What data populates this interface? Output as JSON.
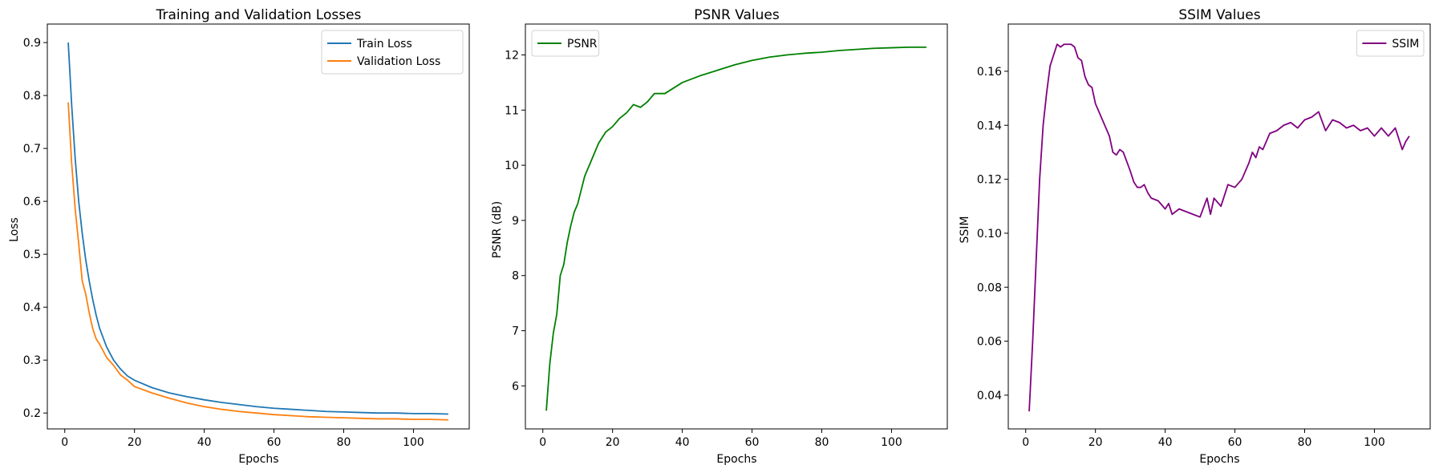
{
  "chart_data": [
    {
      "type": "line",
      "title": "Training and Validation Losses",
      "xlabel": "Epochs",
      "ylabel": "Loss",
      "xlim": [
        -5,
        116
      ],
      "ylim": [
        0.17,
        0.935
      ],
      "xticks": [
        0,
        20,
        40,
        60,
        80,
        100
      ],
      "yticks": [
        0.2,
        0.3,
        0.4,
        0.5,
        0.6,
        0.7,
        0.8,
        0.9
      ],
      "grid": false,
      "legend": "top-right",
      "x": [
        1,
        2,
        3,
        4,
        5,
        6,
        7,
        8,
        9,
        10,
        12,
        14,
        16,
        18,
        20,
        25,
        30,
        35,
        40,
        45,
        50,
        55,
        60,
        65,
        70,
        75,
        80,
        85,
        90,
        95,
        100,
        105,
        110
      ],
      "series": [
        {
          "name": "Train Loss",
          "color": "#1f77b4",
          "values": [
            0.9,
            0.78,
            0.68,
            0.6,
            0.54,
            0.49,
            0.45,
            0.415,
            0.385,
            0.36,
            0.325,
            0.3,
            0.283,
            0.27,
            0.262,
            0.248,
            0.238,
            0.231,
            0.225,
            0.22,
            0.216,
            0.212,
            0.209,
            0.207,
            0.205,
            0.203,
            0.202,
            0.201,
            0.2,
            0.2,
            0.199,
            0.199,
            0.198
          ]
        },
        {
          "name": "Validation Loss",
          "color": "#ff7f0e",
          "values": [
            0.787,
            0.67,
            0.585,
            0.52,
            0.45,
            0.425,
            0.39,
            0.36,
            0.34,
            0.33,
            0.305,
            0.29,
            0.272,
            0.262,
            0.25,
            0.238,
            0.228,
            0.219,
            0.212,
            0.207,
            0.203,
            0.2,
            0.197,
            0.195,
            0.193,
            0.192,
            0.191,
            0.19,
            0.189,
            0.189,
            0.188,
            0.188,
            0.187
          ]
        }
      ]
    },
    {
      "type": "line",
      "title": "PSNR Values",
      "xlabel": "Epochs",
      "ylabel": "PSNR (dB)",
      "xlim": [
        -5,
        116
      ],
      "ylim": [
        5.22,
        12.56
      ],
      "xticks": [
        0,
        20,
        40,
        60,
        80,
        100
      ],
      "yticks": [
        6,
        7,
        8,
        9,
        10,
        11,
        12
      ],
      "grid": false,
      "legend": "top-left",
      "x": [
        1,
        2,
        3,
        4,
        5,
        6,
        7,
        8,
        9,
        10,
        12,
        14,
        16,
        18,
        20,
        22,
        24,
        26,
        28,
        30,
        32,
        35,
        40,
        45,
        50,
        55,
        60,
        65,
        70,
        75,
        80,
        85,
        90,
        95,
        100,
        105,
        110
      ],
      "series": [
        {
          "name": "PSNR",
          "color": "#008000",
          "values": [
            5.55,
            6.4,
            6.95,
            7.3,
            8.0,
            8.2,
            8.6,
            8.9,
            9.15,
            9.3,
            9.8,
            10.1,
            10.4,
            10.6,
            10.7,
            10.85,
            10.95,
            11.1,
            11.05,
            11.15,
            11.3,
            11.3,
            11.5,
            11.62,
            11.72,
            11.82,
            11.9,
            11.96,
            12.0,
            12.03,
            12.05,
            12.08,
            12.1,
            12.12,
            12.13,
            12.14,
            12.14
          ]
        }
      ]
    },
    {
      "type": "line",
      "title": "SSIM Values",
      "xlabel": "Epochs",
      "ylabel": "SSIM",
      "xlim": [
        -5,
        116
      ],
      "ylim": [
        0.0275,
        0.1775
      ],
      "xticks": [
        0,
        20,
        40,
        60,
        80,
        100
      ],
      "yticks": [
        0.04,
        0.06,
        0.08,
        0.1,
        0.12,
        0.14,
        0.16
      ],
      "grid": false,
      "legend": "top-right",
      "x": [
        1,
        2,
        3,
        4,
        5,
        6,
        7,
        8,
        9,
        10,
        11,
        12,
        13,
        14,
        15,
        16,
        17,
        18,
        19,
        20,
        22,
        24,
        25,
        26,
        27,
        28,
        30,
        31,
        32,
        33,
        34,
        35,
        36,
        38,
        40,
        41,
        42,
        44,
        46,
        48,
        50,
        52,
        53,
        54,
        56,
        58,
        60,
        62,
        64,
        65,
        66,
        67,
        68,
        70,
        72,
        74,
        76,
        78,
        80,
        82,
        84,
        86,
        88,
        90,
        92,
        94,
        96,
        98,
        100,
        102,
        104,
        106,
        108,
        109,
        110
      ],
      "series": [
        {
          "name": "SSIM",
          "color": "#800080",
          "values": [
            0.034,
            0.06,
            0.09,
            0.12,
            0.14,
            0.152,
            0.162,
            0.166,
            0.17,
            0.169,
            0.17,
            0.17,
            0.17,
            0.169,
            0.165,
            0.164,
            0.158,
            0.155,
            0.154,
            0.148,
            0.142,
            0.136,
            0.13,
            0.129,
            0.131,
            0.13,
            0.123,
            0.119,
            0.117,
            0.117,
            0.118,
            0.115,
            0.113,
            0.112,
            0.109,
            0.111,
            0.107,
            0.109,
            0.108,
            0.107,
            0.106,
            0.113,
            0.107,
            0.113,
            0.11,
            0.118,
            0.117,
            0.12,
            0.126,
            0.13,
            0.128,
            0.132,
            0.131,
            0.137,
            0.138,
            0.14,
            0.141,
            0.139,
            0.142,
            0.143,
            0.145,
            0.138,
            0.142,
            0.141,
            0.139,
            0.14,
            0.138,
            0.139,
            0.136,
            0.139,
            0.136,
            0.139,
            0.131,
            0.134,
            0.136
          ]
        }
      ]
    }
  ]
}
